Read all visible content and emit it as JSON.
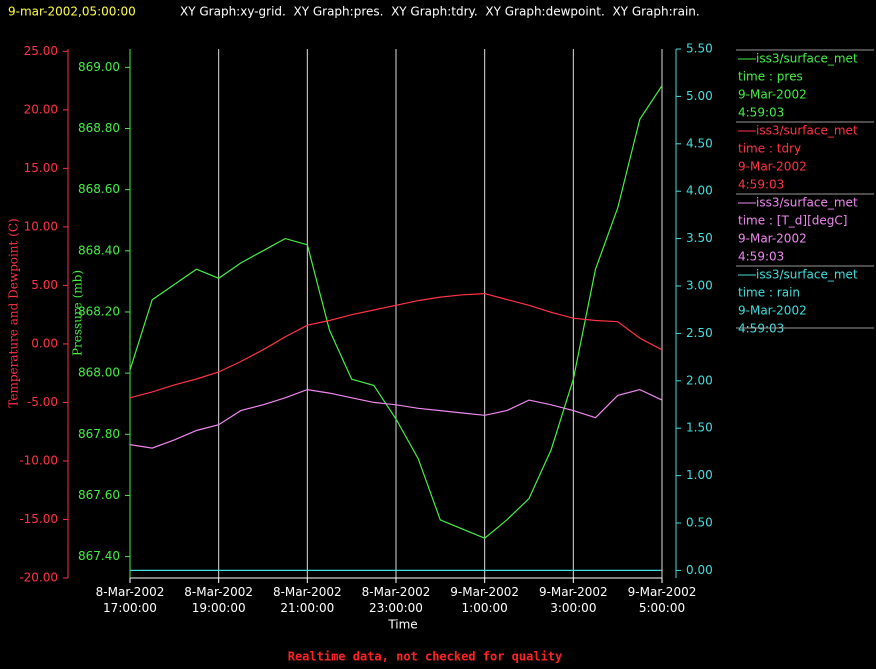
{
  "chart_data": {
    "type": "line",
    "header_time": "9-mar-2002,05:00:00",
    "header_text": "XY Graph:xy-grid.  XY Graph:pres.  XY Graph:tdry.  XY Graph:dewpoint.  XY Graph:rain.",
    "xlabel": "Time",
    "ylabel": "Temperature and Dewpoint (C)",
    "y2label": "Pressure (mb)",
    "footnote": "Realtime data, not checked for quality",
    "grid": true,
    "legend": "right",
    "x": [
      "2002-03-08T17:00",
      "2002-03-08T17:30",
      "2002-03-08T18:00",
      "2002-03-08T18:30",
      "2002-03-08T19:00",
      "2002-03-08T19:30",
      "2002-03-08T20:00",
      "2002-03-08T20:30",
      "2002-03-08T21:00",
      "2002-03-08T21:30",
      "2002-03-08T22:00",
      "2002-03-08T22:30",
      "2002-03-08T23:00",
      "2002-03-08T23:30",
      "2002-03-09T00:00",
      "2002-03-09T00:30",
      "2002-03-09T01:00",
      "2002-03-09T01:30",
      "2002-03-09T02:00",
      "2002-03-09T02:30",
      "2002-03-09T03:00",
      "2002-03-09T03:30",
      "2002-03-09T04:00",
      "2002-03-09T04:30",
      "2002-03-09T05:00"
    ],
    "xlim": [
      "2002-03-08T17:00",
      "2002-03-09T05:00"
    ],
    "xticks": [
      {
        "value": "2002-03-08T17:00",
        "label": "8-Mar-2002 17:00:00"
      },
      {
        "value": "2002-03-08T19:00",
        "label": "8-Mar-2002 19:00:00"
      },
      {
        "value": "2002-03-08T21:00",
        "label": "8-Mar-2002 21:00:00"
      },
      {
        "value": "2002-03-08T23:00",
        "label": "8-Mar-2002 23:00:00"
      },
      {
        "value": "2002-03-09T01:00",
        "label": "9-Mar-2002 1:00:00"
      },
      {
        "value": "2002-03-09T03:00",
        "label": "9-Mar-2002 3:00:00"
      },
      {
        "value": "2002-03-09T05:00",
        "label": "9-Mar-2002 5:00:00"
      }
    ],
    "ylim": [
      -20,
      25.2
    ],
    "yticks": [
      {
        "value": -20,
        "label": "-20.00"
      },
      {
        "value": -15,
        "label": "-15.00"
      },
      {
        "value": -10,
        "label": "-10.00"
      },
      {
        "value": -5,
        "label": "-5.00"
      },
      {
        "value": 0,
        "label": "0.00"
      },
      {
        "value": 5,
        "label": "5.00"
      },
      {
        "value": 10,
        "label": "10.00"
      },
      {
        "value": 15,
        "label": "15.00"
      },
      {
        "value": 20,
        "label": "20.00"
      },
      {
        "value": 25,
        "label": "25.00"
      }
    ],
    "y2lim": [
      867.33,
      869.06
    ],
    "y2ticks": [
      {
        "value": 867.4,
        "label": "867.40"
      },
      {
        "value": 867.6,
        "label": "867.60"
      },
      {
        "value": 867.8,
        "label": "867.80"
      },
      {
        "value": 868.0,
        "label": "868.00"
      },
      {
        "value": 868.2,
        "label": "868.20"
      },
      {
        "value": 868.4,
        "label": "868.40"
      },
      {
        "value": 868.6,
        "label": "868.60"
      },
      {
        "value": 868.8,
        "label": "868.80"
      },
      {
        "value": 869.0,
        "label": "869.00"
      }
    ],
    "y3lim": [
      -0.08,
      5.5
    ],
    "y3ticks": [
      {
        "value": 0,
        "label": "0.00"
      },
      {
        "value": 0.5,
        "label": "0.50"
      },
      {
        "value": 1,
        "label": "1.00"
      },
      {
        "value": 1.5,
        "label": "1.50"
      },
      {
        "value": 2,
        "label": "2.00"
      },
      {
        "value": 2.5,
        "label": "2.50"
      },
      {
        "value": 3,
        "label": "3.00"
      },
      {
        "value": 3.5,
        "label": "3.50"
      },
      {
        "value": 4,
        "label": "4.00"
      },
      {
        "value": 4.5,
        "label": "4.50"
      },
      {
        "value": 5,
        "label": "5.00"
      },
      {
        "value": 5.5,
        "label": "5.50"
      }
    ],
    "series": [
      {
        "name": "iss3/surface_met",
        "legend": [
          "time : pres",
          "9-Mar-2002",
          "4:59:03"
        ],
        "color": "#44ee44",
        "axis": "y2",
        "values": [
          868.01,
          868.24,
          868.29,
          868.34,
          868.31,
          868.36,
          868.4,
          868.44,
          868.42,
          868.14,
          867.98,
          867.96,
          867.85,
          867.72,
          867.52,
          867.49,
          867.46,
          867.52,
          867.59,
          867.75,
          867.98,
          868.34,
          868.54,
          868.83,
          868.94
        ]
      },
      {
        "name": "iss3/surface_met",
        "legend": [
          "time : tdry",
          "9-Mar-2002",
          "4:59:03"
        ],
        "color": "#ff3344",
        "axis": "y",
        "values": [
          -4.6,
          -4.1,
          -3.5,
          -3.0,
          -2.4,
          -1.5,
          -0.5,
          0.6,
          1.6,
          2.0,
          2.5,
          2.9,
          3.3,
          3.7,
          4.0,
          4.2,
          4.3,
          3.8,
          3.3,
          2.7,
          2.2,
          2.0,
          1.9,
          0.5,
          -0.5
        ]
      },
      {
        "name": "iss3/surface_met",
        "legend": [
          "time : [T_d][degC]",
          "9-Mar-2002",
          "4:59:03"
        ],
        "color": "#ee88ee",
        "axis": "y",
        "values": [
          -8.6,
          -8.9,
          -8.2,
          -7.4,
          -6.9,
          -5.7,
          -5.2,
          -4.6,
          -3.9,
          -4.2,
          -4.6,
          -5.0,
          -5.2,
          -5.5,
          -5.7,
          -5.9,
          -6.1,
          -5.7,
          -4.8,
          -5.2,
          -5.7,
          -6.3,
          -4.4,
          -3.9,
          -4.8
        ]
      },
      {
        "name": "iss3/surface_met",
        "legend": [
          "time : rain",
          "9-Mar-2002",
          "4:59:03"
        ],
        "color": "#44dddd",
        "axis": "y3",
        "values": [
          0,
          0,
          0,
          0,
          0,
          0,
          0,
          0,
          0,
          0,
          0,
          0,
          0,
          0,
          0,
          0,
          0,
          0,
          0,
          0,
          0,
          0,
          0,
          0,
          0
        ]
      }
    ]
  }
}
